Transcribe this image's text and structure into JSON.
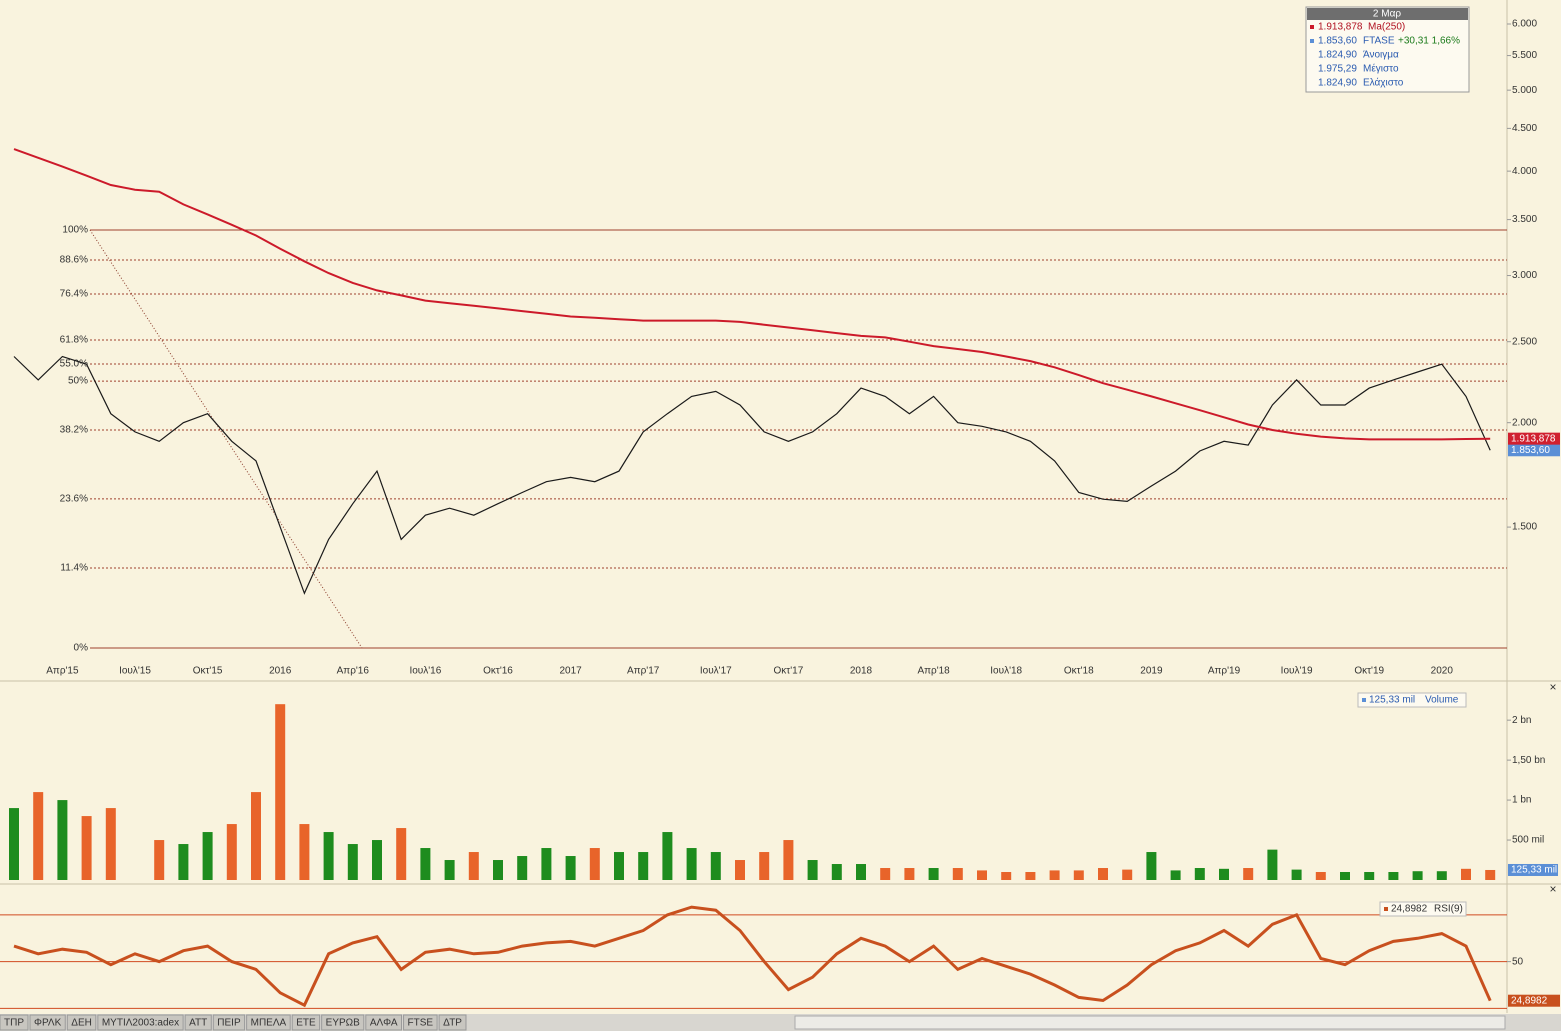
{
  "chart_data": [
    {
      "type": "line",
      "log_scale": true,
      "categories": [
        null,
        null,
        "Απρ'15",
        null,
        null,
        "Ιουλ'15",
        null,
        null,
        "Οκτ'15",
        null,
        null,
        "2016",
        null,
        null,
        "Απρ'16",
        null,
        null,
        "Ιουλ'16",
        null,
        null,
        "Οκτ'16",
        null,
        null,
        "2017",
        null,
        null,
        "Απρ'17",
        null,
        null,
        "Ιουλ'17",
        null,
        null,
        "Οκτ'17",
        null,
        null,
        "2018",
        null,
        null,
        "Απρ'18",
        null,
        null,
        "Ιουλ'18",
        null,
        null,
        "Οκτ'18",
        null,
        null,
        "2019",
        null,
        null,
        "Απρ'19",
        null,
        null,
        "Ιουλ'19",
        null,
        null,
        "Οκτ'19",
        null,
        null,
        "2020",
        null,
        null
      ],
      "series": [
        {
          "name": "FTASE",
          "color": "#1a1a1a",
          "tag_color": "#5b8fd6",
          "values": [
            2400,
            2250,
            2400,
            2350,
            2050,
            1950,
            1900,
            2000,
            2050,
            1900,
            1800,
            1500,
            1250,
            1450,
            1600,
            1750,
            1450,
            1550,
            1580,
            1550,
            1600,
            1650,
            1700,
            1720,
            1700,
            1750,
            1950,
            2050,
            2150,
            2180,
            2100,
            1950,
            1900,
            1950,
            2050,
            2200,
            2150,
            2050,
            2150,
            2000,
            1980,
            1950,
            1900,
            1800,
            1650,
            1620,
            1610,
            1680,
            1750,
            1850,
            1900,
            1880,
            2100,
            2250,
            2100,
            2100,
            2200,
            2250,
            2300,
            2350,
            2150,
            1853.6
          ],
          "value_labels": [
            null,
            null,
            null,
            null,
            null,
            null,
            null,
            null,
            null,
            null,
            null,
            null,
            null,
            null,
            null,
            null,
            null,
            null,
            null,
            null,
            null,
            null,
            null,
            null,
            null,
            null,
            null,
            null,
            null,
            null,
            null,
            null,
            null,
            null,
            null,
            null,
            null,
            null,
            null,
            null,
            null,
            null,
            null,
            null,
            null,
            null,
            null,
            null,
            null,
            null,
            null,
            null,
            null,
            null,
            null,
            null,
            null,
            null,
            null,
            null,
            null,
            "1.853,60"
          ]
        },
        {
          "name": "Ma(250)",
          "color": "#cc1a2a",
          "tag_color": "#d0202f",
          "values": [
            4250,
            4150,
            4050,
            3950,
            3850,
            3800,
            3780,
            3650,
            3550,
            3450,
            3350,
            3230,
            3120,
            3020,
            2940,
            2880,
            2840,
            2800,
            2780,
            2760,
            2740,
            2720,
            2700,
            2680,
            2670,
            2660,
            2650,
            2650,
            2650,
            2650,
            2640,
            2620,
            2600,
            2580,
            2560,
            2540,
            2530,
            2500,
            2470,
            2450,
            2430,
            2400,
            2370,
            2330,
            2280,
            2230,
            2190,
            2150,
            2110,
            2070,
            2030,
            1990,
            1960,
            1940,
            1925,
            1915,
            1910,
            1910,
            1910,
            1910,
            1912,
            1913.878
          ],
          "value_labels": [
            null,
            null,
            null,
            null,
            null,
            null,
            null,
            null,
            null,
            null,
            null,
            null,
            null,
            null,
            null,
            null,
            null,
            null,
            null,
            null,
            null,
            null,
            null,
            null,
            null,
            null,
            null,
            null,
            null,
            null,
            null,
            null,
            null,
            null,
            null,
            null,
            null,
            null,
            null,
            null,
            null,
            null,
            null,
            null,
            null,
            null,
            null,
            null,
            null,
            null,
            null,
            null,
            null,
            null,
            null,
            null,
            null,
            null,
            null,
            null,
            null,
            "1.913,878"
          ]
        }
      ],
      "ylim": [
        1040,
        6410
      ],
      "yticks": [
        {
          "value": 1500,
          "label": "1.500"
        },
        {
          "value": 2000,
          "label": "2.000"
        },
        {
          "value": 2500,
          "label": "2.500"
        },
        {
          "value": 3000,
          "label": "3.000"
        },
        {
          "value": 3500,
          "label": "3.500"
        },
        {
          "value": 4000,
          "label": "4.000"
        },
        {
          "value": 4500,
          "label": "4.500"
        },
        {
          "value": 5000,
          "label": "5.000"
        },
        {
          "value": 5500,
          "label": "5.500"
        },
        {
          "value": 6000,
          "label": "6.000"
        }
      ],
      "levels": [
        {
          "value": 3401,
          "label": "100%"
        },
        {
          "value": 3131,
          "label": "88.6%"
        },
        {
          "value": 2851,
          "label": "76.4%"
        },
        {
          "value": 2512,
          "label": "61.8%"
        },
        {
          "value": 2351,
          "label": "55.0%"
        },
        {
          "value": 2243,
          "label": "50%"
        },
        {
          "value": 1960,
          "label": "38.2%"
        },
        {
          "value": 1621,
          "label": "23.6%"
        },
        {
          "value": 1340,
          "label": "11.4%"
        },
        {
          "value": 1075,
          "label": "0%"
        }
      ],
      "legend": {
        "header": "2 Μαρ",
        "change": "+30,31 1,66%",
        "info": [
          {
            "label": "1.824,90",
            "name": "Άνοιγμα"
          },
          {
            "label": "1.975,29",
            "name": "Μέγιστο"
          },
          {
            "label": "1.824,90",
            "name": "Ελάχιστο"
          }
        ]
      }
    },
    {
      "type": "bar",
      "up_color": "#1e8c1e",
      "down_color": "#e8642a",
      "series": [
        {
          "name": "Volume",
          "color": "#5b8fd6",
          "values": [
            900,
            1100,
            1000,
            800,
            900,
            null,
            500,
            450,
            600,
            700,
            1100,
            2200,
            700,
            600,
            450,
            500,
            650,
            400,
            250,
            350,
            250,
            300,
            400,
            300,
            400,
            350,
            350,
            600,
            400,
            350,
            250,
            350,
            500,
            250,
            200,
            200,
            150,
            150,
            150,
            150,
            120,
            100,
            100,
            120,
            120,
            150,
            130,
            350,
            120,
            150,
            140,
            150,
            380,
            130,
            100,
            100,
            100,
            100,
            110,
            110,
            140,
            125.33
          ],
          "value_labels": [
            null,
            null,
            null,
            null,
            null,
            null,
            null,
            null,
            null,
            null,
            null,
            null,
            null,
            null,
            null,
            null,
            null,
            null,
            null,
            null,
            null,
            null,
            null,
            null,
            null,
            null,
            null,
            null,
            null,
            null,
            null,
            null,
            null,
            null,
            null,
            null,
            null,
            null,
            null,
            null,
            null,
            null,
            null,
            null,
            null,
            null,
            null,
            null,
            null,
            null,
            null,
            null,
            null,
            null,
            null,
            null,
            null,
            null,
            null,
            null,
            null,
            "125,33 mil"
          ]
        }
      ],
      "ylim": [
        0,
        2440
      ],
      "yticks": [
        {
          "value": 500,
          "label": "500 mil"
        },
        {
          "value": 1000,
          "label": "1 bn"
        },
        {
          "value": 1500,
          "label": "1,50 bn"
        },
        {
          "value": 2000,
          "label": "2 bn"
        }
      ]
    },
    {
      "type": "line",
      "series": [
        {
          "name": "RSI(9)",
          "color": "#c8501e",
          "values": [
            60,
            55,
            58,
            56,
            48,
            55,
            50,
            57,
            60,
            50,
            45,
            30,
            22,
            55,
            62,
            66,
            45,
            56,
            58,
            55,
            56,
            60,
            62,
            63,
            60,
            65,
            70,
            80,
            85,
            83,
            70,
            50,
            32,
            40,
            55,
            65,
            60,
            50,
            60,
            45,
            52,
            47,
            42,
            35,
            27,
            25,
            35,
            48,
            57,
            62,
            70,
            60,
            74,
            80,
            52,
            48,
            57,
            63,
            65,
            68,
            60,
            24.8982
          ],
          "value_labels": [
            null,
            null,
            null,
            null,
            null,
            null,
            null,
            null,
            null,
            null,
            null,
            null,
            null,
            null,
            null,
            null,
            null,
            null,
            null,
            null,
            null,
            null,
            null,
            null,
            null,
            null,
            null,
            null,
            null,
            null,
            null,
            null,
            null,
            null,
            null,
            null,
            null,
            null,
            null,
            null,
            null,
            null,
            null,
            null,
            null,
            null,
            null,
            null,
            null,
            null,
            null,
            null,
            null,
            null,
            null,
            null,
            null,
            null,
            null,
            null,
            null,
            "24,8982"
          ]
        }
      ],
      "ylim": [
        17,
        96
      ],
      "yticks": [
        50
      ],
      "levels": [
        80,
        50,
        20
      ]
    }
  ],
  "tabs": [
    "ΤΠΡ",
    "ΦΡΛΚ",
    "ΔΕΗ",
    "ΜΥΤΙΛ2003:adex",
    "ΑΤΤ",
    "ΠΕΙΡ",
    "ΜΠΕΛΑ",
    "ΕΤΕ",
    "ΕΥΡΩΒ",
    "ΑΛΦΑ",
    "FTSE",
    "ΔΤΡ"
  ]
}
